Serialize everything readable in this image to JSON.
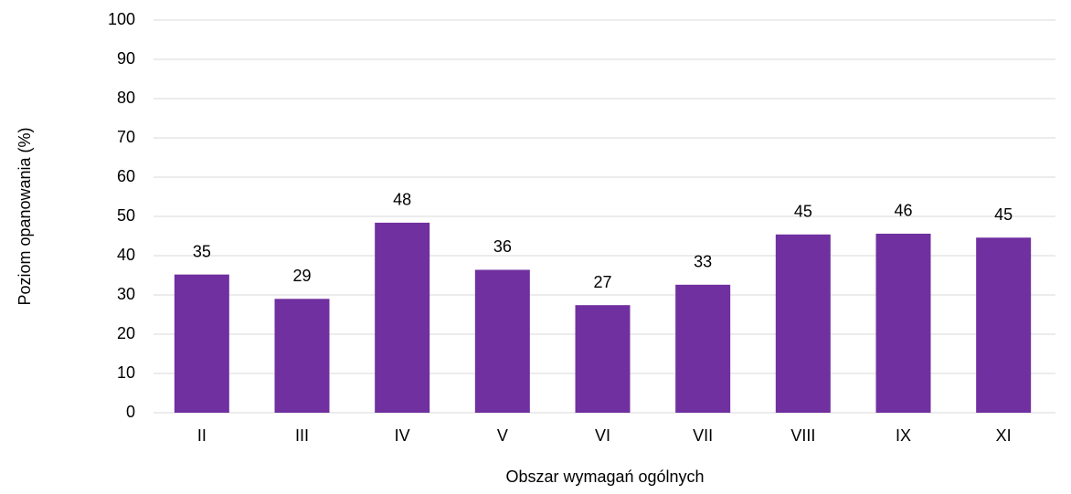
{
  "chart_data": {
    "type": "bar",
    "x_label": "Obszar wymagań ogólnych",
    "y_label": "Poziom opanowania (%)",
    "categories": [
      "II",
      "III",
      "IV",
      "V",
      "VI",
      "VII",
      "VIII",
      "IX",
      "XI"
    ],
    "values": [
      35.2,
      29,
      48.4,
      36.4,
      27.4,
      32.6,
      45.4,
      45.6,
      44.6
    ],
    "value_labels": [
      "35",
      "29",
      "48",
      "36",
      "27",
      "33",
      "45",
      "46",
      "45"
    ],
    "color": "#7030a0",
    "ylim": [
      0,
      100
    ],
    "yticks": [
      0,
      10,
      20,
      30,
      40,
      50,
      60,
      70,
      80,
      90,
      100
    ],
    "grid": true
  }
}
